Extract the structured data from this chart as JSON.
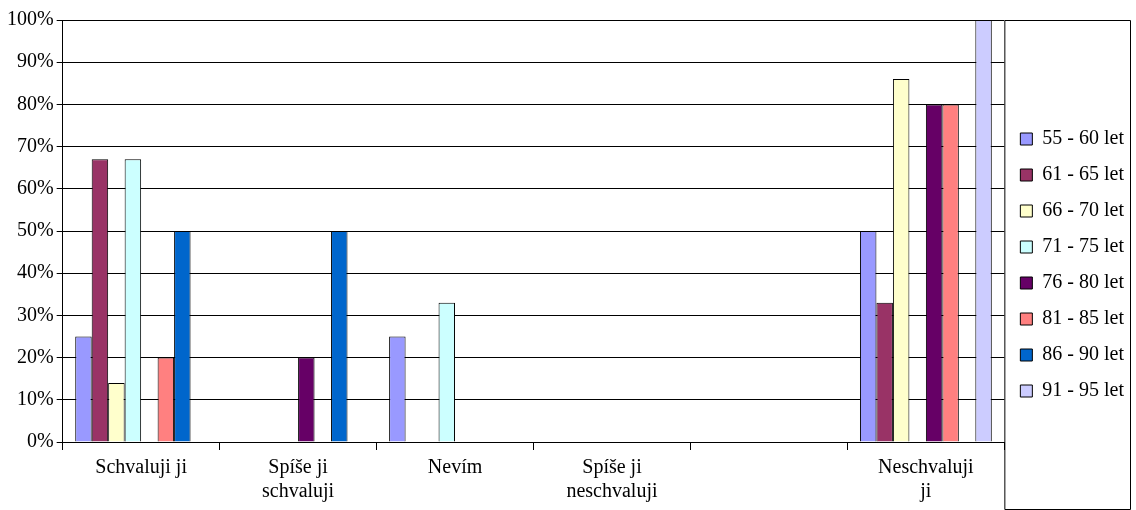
{
  "chart_data": {
    "type": "bar",
    "categories": [
      "Schvaluji ji",
      "Spíše ji schvaluji",
      "Nevím",
      "Spíše ji neschvaluji",
      null,
      "Neschvaluji ji"
    ],
    "series": [
      {
        "name": "55 - 60 let",
        "color": "#9999ff",
        "values": [
          25,
          0,
          25,
          0,
          0,
          50
        ]
      },
      {
        "name": "61 - 65 let",
        "color": "#993366",
        "values": [
          67,
          0,
          0,
          0,
          0,
          33
        ]
      },
      {
        "name": "66 - 70 let",
        "color": "#ffffcc",
        "values": [
          14,
          0,
          0,
          0,
          0,
          86
        ]
      },
      {
        "name": "71 - 75 let",
        "color": "#ccffff",
        "values": [
          67,
          0,
          33,
          0,
          0,
          0
        ]
      },
      {
        "name": "76 - 80 let",
        "color": "#660066",
        "values": [
          0,
          20,
          0,
          0,
          0,
          80
        ]
      },
      {
        "name": "81 - 85 let",
        "color": "#ff8080",
        "values": [
          20,
          0,
          0,
          0,
          0,
          80
        ]
      },
      {
        "name": "86 - 90 let",
        "color": "#0066cc",
        "values": [
          50,
          50,
          0,
          0,
          0,
          0
        ]
      },
      {
        "name": "91 - 95 let",
        "color": "#ccccff",
        "values": [
          0,
          0,
          0,
          0,
          0,
          100
        ]
      }
    ],
    "ylim": [
      0,
      100
    ],
    "yticks": [
      {
        "value": 0,
        "label": "0%"
      },
      {
        "value": 10,
        "label": "10%"
      },
      {
        "value": 20,
        "label": "20%"
      },
      {
        "value": 30,
        "label": "30%"
      },
      {
        "value": 40,
        "label": "40%"
      },
      {
        "value": 50,
        "label": "50%"
      },
      {
        "value": 60,
        "label": "60%"
      },
      {
        "value": 70,
        "label": "70%"
      },
      {
        "value": 80,
        "label": "80%"
      },
      {
        "value": 90,
        "label": "90%"
      },
      {
        "value": 100,
        "label": "100%"
      }
    ],
    "grid": "y",
    "legend": "right"
  }
}
